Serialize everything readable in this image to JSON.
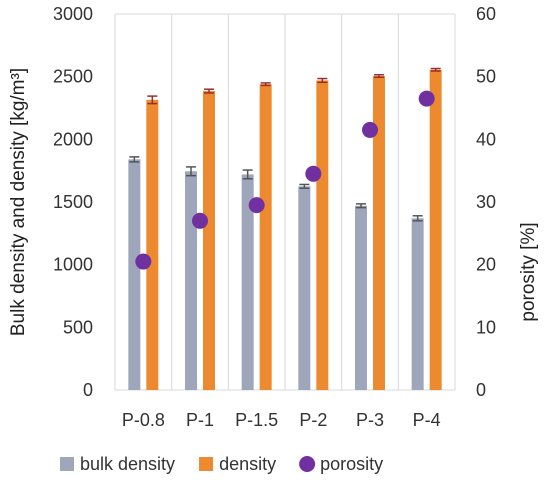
{
  "chart_data": {
    "type": "bar",
    "categories": [
      "P-0.8",
      "P-1",
      "P-1.5",
      "P-2",
      "P-3",
      "P-4"
    ],
    "series": [
      {
        "name": "bulk density",
        "kind": "bar",
        "axis": "left",
        "color": "#9ea6bb",
        "error_color": "#555555",
        "values": [
          1840,
          1745,
          1720,
          1625,
          1470,
          1370
        ],
        "errors": [
          20,
          35,
          35,
          15,
          15,
          20
        ]
      },
      {
        "name": "density",
        "kind": "bar",
        "axis": "left",
        "color": "#ed8a2f",
        "error_color": "#9a2f2f",
        "values": [
          2315,
          2385,
          2440,
          2470,
          2505,
          2555
        ],
        "errors": [
          30,
          15,
          10,
          15,
          10,
          10
        ]
      },
      {
        "name": "porosity",
        "kind": "scatter",
        "axis": "right",
        "color": "#7030a0",
        "values": [
          20.5,
          27,
          29.5,
          34.5,
          41.5,
          46.5
        ]
      }
    ],
    "ylabel": "Bulk density and density [kg/m³]",
    "y2label": "porosity [%]",
    "ylim": [
      0,
      3000
    ],
    "y2lim": [
      0,
      60
    ],
    "yticks": [
      "0",
      "500",
      "1000",
      "1500",
      "2000",
      "2500",
      "3000"
    ],
    "y2ticks": [
      "0",
      "10",
      "20",
      "30",
      "40",
      "50",
      "60"
    ],
    "grid": "vertical",
    "legend_position": "bottom"
  }
}
